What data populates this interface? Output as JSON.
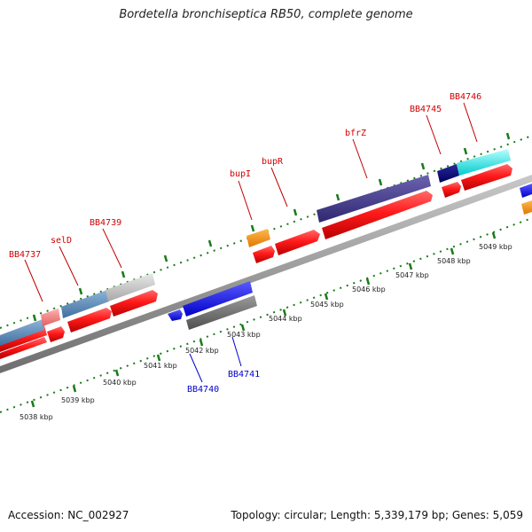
{
  "title": "Bordetella bronchiseptica RB50, complete genome",
  "footer": {
    "accession": "Accession: NC_002927",
    "topology": "Topology: circular; Length: 5,339,179 bp; Genes: 5,059"
  },
  "scale_labels": [
    "5038 kbp",
    "5039 kbp",
    "5040 kbp",
    "5041 kbp",
    "5042 kbp",
    "5043 kbp",
    "5044 kbp",
    "5045 kbp",
    "5046 kbp",
    "5047 kbp",
    "5048 kbp",
    "5049 kbp"
  ],
  "gene_labels_forward": [
    "BB4737",
    "selD",
    "BB4739",
    "bupI",
    "bupR",
    "bfrZ",
    "BB4745",
    "BB4746"
  ],
  "gene_labels_reverse": [
    "BB4740",
    "BB4741"
  ],
  "colors": {
    "label_forward": "#d40000",
    "label_reverse": "#0000cc",
    "cds": "#ff1a1a",
    "backbone": "#8c8c8c",
    "tick": "#1a7a1a"
  }
}
